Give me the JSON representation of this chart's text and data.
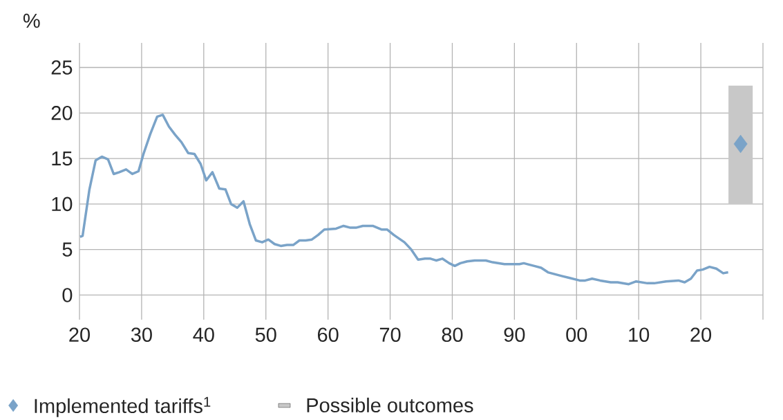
{
  "chart_data": {
    "type": "line",
    "ylabel": "%",
    "xlim": [
      1920,
      2030
    ],
    "ylim": [
      -2.7,
      27.7
    ],
    "xticks": [
      {
        "value": 1920,
        "label": "20"
      },
      {
        "value": 1930,
        "label": "30"
      },
      {
        "value": 1940,
        "label": "40"
      },
      {
        "value": 1950,
        "label": "50"
      },
      {
        "value": 1960,
        "label": "60"
      },
      {
        "value": 1970,
        "label": "70"
      },
      {
        "value": 1980,
        "label": "80"
      },
      {
        "value": 1990,
        "label": "90"
      },
      {
        "value": 2000,
        "label": "00"
      },
      {
        "value": 2010,
        "label": "10"
      },
      {
        "value": 2020,
        "label": "20"
      },
      {
        "value": 2030,
        "label": null
      }
    ],
    "yticks": [
      0,
      5,
      10,
      15,
      20,
      25
    ],
    "grid": true,
    "legend": "bottom",
    "series": [
      {
        "color": "#7aa3c8",
        "x": [
          1920.1,
          1920.5,
          1921.6,
          1922.6,
          1923.6,
          1924.6,
          1925.5,
          1926.4,
          1927.5,
          1928.5,
          1929.5,
          1930.3,
          1931.4,
          1932.5,
          1933.4,
          1934.4,
          1935.4,
          1936.4,
          1937.5,
          1938.5,
          1939.5,
          1940.4,
          1941.4,
          1942.5,
          1943.5,
          1944.4,
          1945.4,
          1946.4,
          1947.4,
          1948.4,
          1949.4,
          1950.4,
          1951.4,
          1952.4,
          1953.4,
          1954.4,
          1955.4,
          1956.4,
          1957.4,
          1958.4,
          1959.4,
          1961.3,
          1962.5,
          1963.6,
          1964.5,
          1965.6,
          1967.2,
          1968.6,
          1969.5,
          1970.6,
          1972.3,
          1973.4,
          1974.5,
          1975.6,
          1976.5,
          1977.4,
          1978.4,
          1979.5,
          1980.4,
          1981.3,
          1982.4,
          1983.6,
          1984.6,
          1985.4,
          1986.5,
          1988.4,
          1989.9,
          1990.8,
          1991.5,
          1993.2,
          1994.3,
          1995.4,
          1997.6,
          1998.8,
          2000.5,
          2001.4,
          2002.5,
          2003.8,
          2005.5,
          2006.6,
          2008.4,
          2009.6,
          2011.4,
          2012.5,
          2014.4,
          2016.4,
          2017.4,
          2018.4,
          2019.4,
          2020.3,
          2021.4,
          2022.5,
          2023.6,
          2024.4
        ],
        "values": [
          6.4,
          6.5,
          11.6,
          14.8,
          15.2,
          14.9,
          13.3,
          13.5,
          13.8,
          13.3,
          13.6,
          15.5,
          17.7,
          19.6,
          19.8,
          18.5,
          17.6,
          16.8,
          15.6,
          15.5,
          14.4,
          12.6,
          13.5,
          11.7,
          11.6,
          10.0,
          9.6,
          10.3,
          7.8,
          6.0,
          5.8,
          6.1,
          5.6,
          5.4,
          5.5,
          5.5,
          6.0,
          6.0,
          6.1,
          6.6,
          7.2,
          7.3,
          7.6,
          7.4,
          7.4,
          7.6,
          7.6,
          7.2,
          7.2,
          6.6,
          5.8,
          5.0,
          3.9,
          4.0,
          4.0,
          3.8,
          4.0,
          3.5,
          3.2,
          3.5,
          3.7,
          3.8,
          3.8,
          3.8,
          3.6,
          3.4,
          3.4,
          3.4,
          3.5,
          3.2,
          3.0,
          2.5,
          2.1,
          1.9,
          1.6,
          1.6,
          1.8,
          1.6,
          1.4,
          1.4,
          1.2,
          1.5,
          1.3,
          1.3,
          1.5,
          1.6,
          1.4,
          1.8,
          2.7,
          2.8,
          3.1,
          2.9,
          2.4,
          2.5
        ]
      },
      {
        "type": "scatter",
        "name": "Implemented tariffs$^{1}$",
        "color": "#7aa3c8",
        "marker": "diamond",
        "x": [
          2026.4
        ],
        "values": [
          16.6
        ]
      },
      {
        "type": "bar",
        "name": "Possible outcomes",
        "color": "#c8c8c8",
        "x": [
          2026.4
        ],
        "base": [
          10
        ],
        "values": [
          13
        ]
      }
    ]
  }
}
